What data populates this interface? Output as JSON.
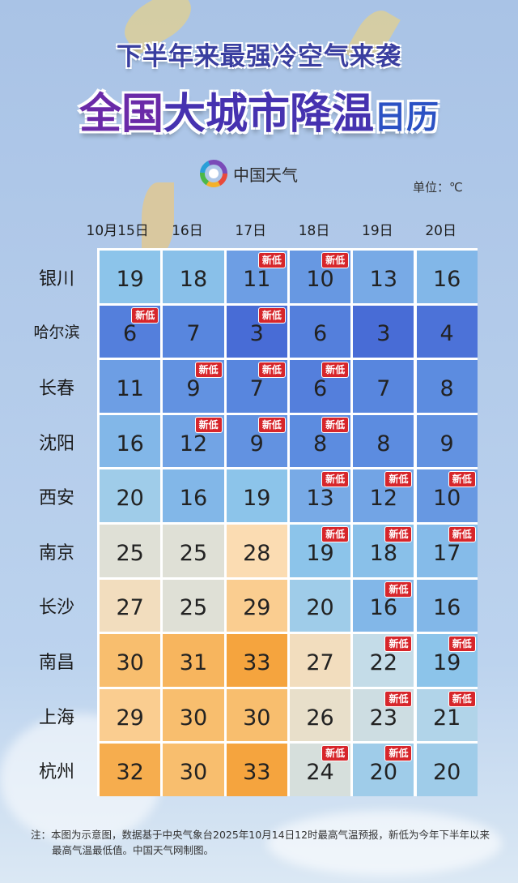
{
  "header": {
    "title_line1": "下半年来最强冷空气来袭",
    "title_line2_a": "全国",
    "title_line2_b": "大城市降温",
    "title_line2_c": "日历"
  },
  "logo": {
    "text": "中国天气",
    "icon": "china-weather-pinwheel-icon"
  },
  "unit": "单位：℃",
  "badge_label": "新低",
  "footnote": "注：本图为示意图，数据基于中央气象台2025年10月14日12时最高气温预报，新低为今年下半年以来最高气温最低值。中国天气网制图。",
  "colors": {
    "badge": "#d7262b",
    "cold": "#4a6ed6",
    "cool": "#8cc3ea",
    "mild": "#dfe0d6",
    "warm": "#fbdcb2",
    "hot": "#f5a43e"
  },
  "chart_data": {
    "type": "heatmap",
    "columns": [
      "10月15日",
      "16日",
      "17日",
      "18日",
      "19日",
      "20日"
    ],
    "rows": [
      "银川",
      "哈尔滨",
      "长春",
      "沈阳",
      "西安",
      "南京",
      "长沙",
      "南昌",
      "上海",
      "杭州"
    ],
    "unit": "℃",
    "values": [
      [
        19,
        18,
        11,
        10,
        13,
        16
      ],
      [
        6,
        7,
        3,
        6,
        3,
        4
      ],
      [
        11,
        9,
        7,
        6,
        7,
        8
      ],
      [
        16,
        12,
        9,
        8,
        8,
        9
      ],
      [
        20,
        16,
        19,
        13,
        12,
        10
      ],
      [
        25,
        25,
        28,
        19,
        18,
        17
      ],
      [
        27,
        25,
        29,
        20,
        16,
        16
      ],
      [
        30,
        31,
        33,
        27,
        22,
        19
      ],
      [
        29,
        30,
        30,
        26,
        23,
        21
      ],
      [
        32,
        30,
        33,
        24,
        20,
        20
      ]
    ],
    "new_low": [
      [
        false,
        false,
        true,
        true,
        false,
        false
      ],
      [
        true,
        false,
        true,
        false,
        false,
        false
      ],
      [
        false,
        true,
        true,
        true,
        false,
        false
      ],
      [
        false,
        true,
        true,
        true,
        false,
        false
      ],
      [
        false,
        false,
        false,
        true,
        true,
        true
      ],
      [
        false,
        false,
        false,
        true,
        true,
        true
      ],
      [
        false,
        false,
        false,
        false,
        true,
        false
      ],
      [
        false,
        false,
        false,
        false,
        true,
        true
      ],
      [
        false,
        false,
        false,
        false,
        true,
        true
      ],
      [
        false,
        false,
        false,
        true,
        true,
        false
      ]
    ]
  }
}
